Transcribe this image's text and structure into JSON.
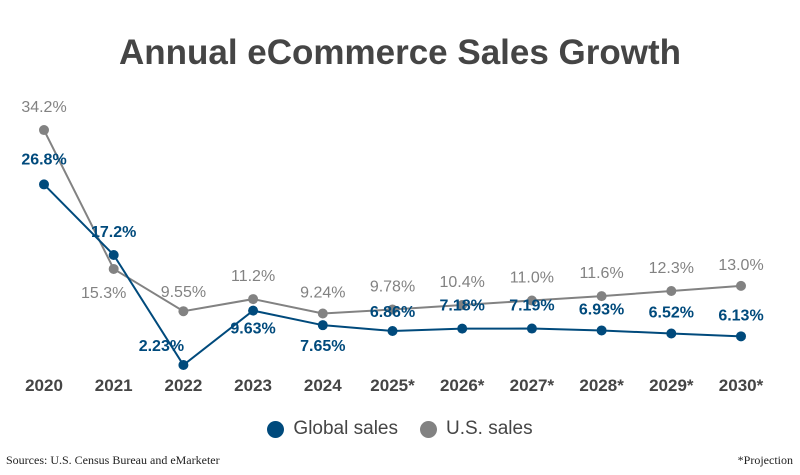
{
  "chart_data": {
    "type": "line",
    "title": "Annual eCommerce Sales Growth",
    "categories": [
      "2020",
      "2021",
      "2022",
      "2023",
      "2024",
      "2025*",
      "2026*",
      "2027*",
      "2028*",
      "2029*",
      "2030*"
    ],
    "series": [
      {
        "name": "Global sales",
        "color": "#004a7c",
        "values": [
          26.8,
          17.2,
          2.23,
          9.63,
          7.65,
          6.86,
          7.18,
          7.19,
          6.93,
          6.52,
          6.13
        ],
        "labels": [
          "26.8%",
          "17.2%",
          "2.23%",
          "9.63%",
          "7.65%",
          "6.86%",
          "7.18%",
          "7.19%",
          "6.93%",
          "6.52%",
          "6.13%"
        ]
      },
      {
        "name": "U.S. sales",
        "color": "#828282",
        "values": [
          34.2,
          15.3,
          9.55,
          11.2,
          9.24,
          9.78,
          10.4,
          11.0,
          11.6,
          12.3,
          13.0
        ],
        "labels": [
          "34.2%",
          "15.3%",
          "9.55%",
          "11.2%",
          "9.24%",
          "9.78%",
          "10.4%",
          "11.0%",
          "11.6%",
          "12.3%",
          "13.0%"
        ]
      }
    ],
    "xlabel": "",
    "ylabel": "",
    "ylim": [
      0,
      36
    ],
    "grid": false,
    "legend": "bottom-center",
    "unit": "%"
  },
  "footer": {
    "source": "Sources: U.S. Census Bureau and eMarketer",
    "note": "*Projection"
  }
}
